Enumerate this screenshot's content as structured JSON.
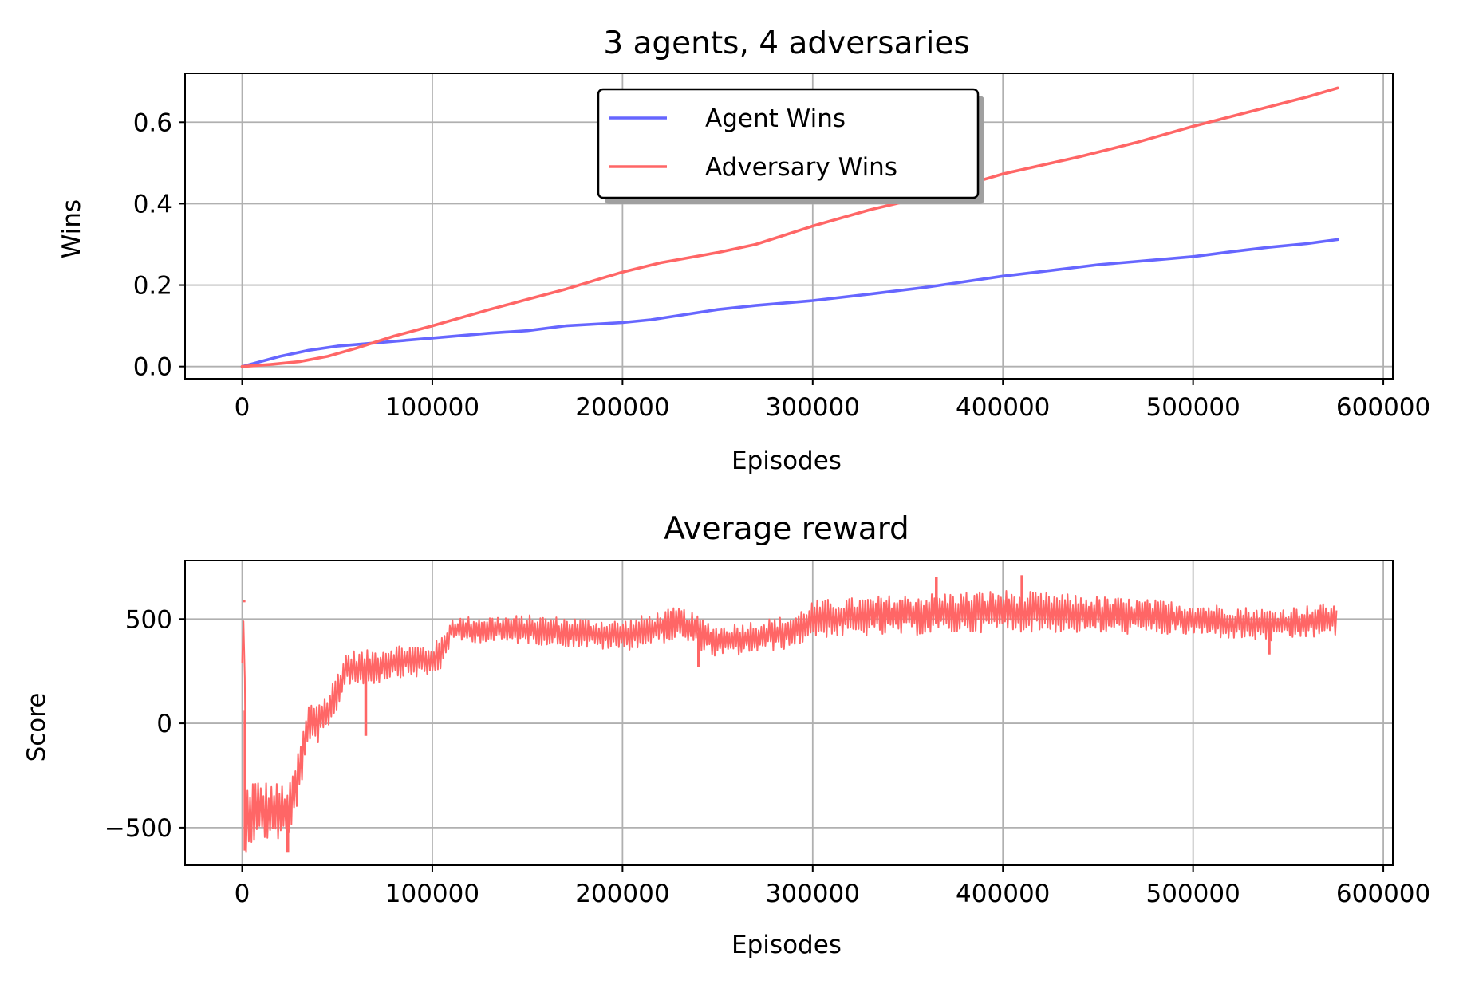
{
  "chart_data": [
    {
      "type": "line",
      "title": "3 agents, 4 adversaries",
      "xlabel": "Episodes",
      "ylabel": "Wins",
      "xlim": [
        -30000,
        605000
      ],
      "ylim": [
        -0.03,
        0.72
      ],
      "xticks": [
        0,
        100000,
        200000,
        300000,
        400000,
        500000,
        600000
      ],
      "xtick_labels": [
        "0",
        "100000",
        "200000",
        "300000",
        "400000",
        "500000",
        "600000"
      ],
      "yticks": [
        0.0,
        0.2,
        0.4,
        0.6
      ],
      "ytick_labels": [
        "0.0",
        "0.2",
        "0.4",
        "0.6"
      ],
      "grid": true,
      "legend": "upper-center",
      "series": [
        {
          "name": "Agent Wins",
          "color": "#6666ff",
          "x": [
            0,
            20000,
            35000,
            50000,
            70000,
            100000,
            130000,
            150000,
            170000,
            200000,
            215000,
            250000,
            270000,
            300000,
            330000,
            360000,
            400000,
            420000,
            450000,
            480000,
            500000,
            520000,
            540000,
            560000,
            576000
          ],
          "y": [
            0.0,
            0.025,
            0.04,
            0.05,
            0.058,
            0.07,
            0.082,
            0.088,
            0.1,
            0.108,
            0.115,
            0.14,
            0.15,
            0.162,
            0.178,
            0.195,
            0.222,
            0.233,
            0.25,
            0.262,
            0.27,
            0.282,
            0.293,
            0.302,
            0.312
          ]
        },
        {
          "name": "Adversary Wins",
          "color": "#ff6666",
          "x": [
            0,
            15000,
            30000,
            45000,
            60000,
            80000,
            100000,
            130000,
            150000,
            170000,
            200000,
            220000,
            250000,
            270000,
            300000,
            330000,
            360000,
            400000,
            440000,
            470000,
            500000,
            530000,
            560000,
            576000
          ],
          "y": [
            0.0,
            0.005,
            0.012,
            0.025,
            0.045,
            0.075,
            0.1,
            0.14,
            0.165,
            0.19,
            0.232,
            0.255,
            0.28,
            0.3,
            0.345,
            0.385,
            0.418,
            0.473,
            0.515,
            0.55,
            0.59,
            0.626,
            0.662,
            0.684
          ]
        }
      ]
    },
    {
      "type": "line",
      "title": "Average reward",
      "xlabel": "Episodes",
      "ylabel": "Score",
      "xlim": [
        -30000,
        605000
      ],
      "ylim": [
        -680,
        780
      ],
      "xticks": [
        0,
        100000,
        200000,
        300000,
        400000,
        500000,
        600000
      ],
      "xtick_labels": [
        "0",
        "100000",
        "200000",
        "300000",
        "400000",
        "500000",
        "600000"
      ],
      "yticks": [
        -500,
        0,
        500
      ],
      "ytick_labels": [
        "−500",
        "0",
        "500"
      ],
      "grid": true,
      "series": [
        {
          "name": "",
          "color": "#ff6666",
          "x": [
            0,
            1000,
            2000,
            5000,
            15000,
            25000,
            30000,
            35000,
            45000,
            55000,
            65000,
            80000,
            95000,
            100000,
            105000,
            110000,
            150000,
            200000,
            230000,
            250000,
            290000,
            300000,
            350000,
            400000,
            450000,
            500000,
            540000,
            576000
          ],
          "mean": [
            290,
            580,
            -460,
            -420,
            -420,
            -430,
            -230,
            -10,
            40,
            270,
            260,
            300,
            300,
            300,
            340,
            450,
            450,
            420,
            480,
            390,
            440,
            500,
            520,
            540,
            520,
            500,
            470,
            500
          ],
          "band": [
            0,
            10,
            160,
            160,
            140,
            140,
            120,
            110,
            110,
            80,
            90,
            80,
            80,
            80,
            80,
            60,
            70,
            75,
            80,
            80,
            80,
            90,
            100,
            100,
            90,
            80,
            80,
            80
          ],
          "spikes": [
            {
              "x": 1000,
              "y": 590
            },
            {
              "x": 1500,
              "y": -610
            },
            {
              "x": 24000,
              "y": -620
            },
            {
              "x": 65000,
              "y": -60
            },
            {
              "x": 240000,
              "y": 270
            },
            {
              "x": 365000,
              "y": 700
            },
            {
              "x": 410000,
              "y": 710
            },
            {
              "x": 540000,
              "y": 330
            }
          ]
        }
      ]
    }
  ]
}
